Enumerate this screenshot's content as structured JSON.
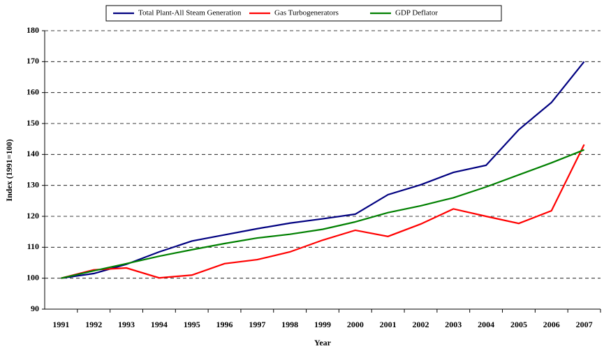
{
  "chart_data": {
    "type": "line",
    "x_label": "Year",
    "y_label": "Index (1991=100)",
    "categories": [
      "1991",
      "1992",
      "1993",
      "1994",
      "1995",
      "1996",
      "1997",
      "1998",
      "1999",
      "2000",
      "2001",
      "2002",
      "2003",
      "2004",
      "2005",
      "2006",
      "2007"
    ],
    "series": [
      {
        "name": "Total Plant-All Steam Generation",
        "color": "#000080",
        "values": [
          100,
          101.5,
          104.5,
          108.5,
          112,
          114,
          116,
          117.8,
          119.2,
          120.7,
          127,
          130.2,
          134.2,
          136.5,
          148,
          156.8,
          170
        ]
      },
      {
        "name": "Gas Turbogenerators",
        "color": "#ff0000",
        "values": [
          100,
          102.7,
          103.3,
          100.1,
          101,
          104.7,
          106,
          108.5,
          112.3,
          115.5,
          113.5,
          117.5,
          122.4,
          120,
          117.7,
          121.8,
          143.2
        ]
      },
      {
        "name": "GDP Deflator",
        "color": "#008000",
        "values": [
          100,
          102.4,
          104.7,
          107.1,
          109.2,
          111.2,
          113,
          114.2,
          115.8,
          118.2,
          121.2,
          123.4,
          126,
          129.5,
          133.4,
          137.3,
          141.5
        ]
      }
    ],
    "ylim": [
      90,
      180
    ],
    "yticks": [
      90,
      100,
      110,
      120,
      130,
      140,
      150,
      160,
      170,
      180
    ],
    "grid": true,
    "legend": "top"
  }
}
